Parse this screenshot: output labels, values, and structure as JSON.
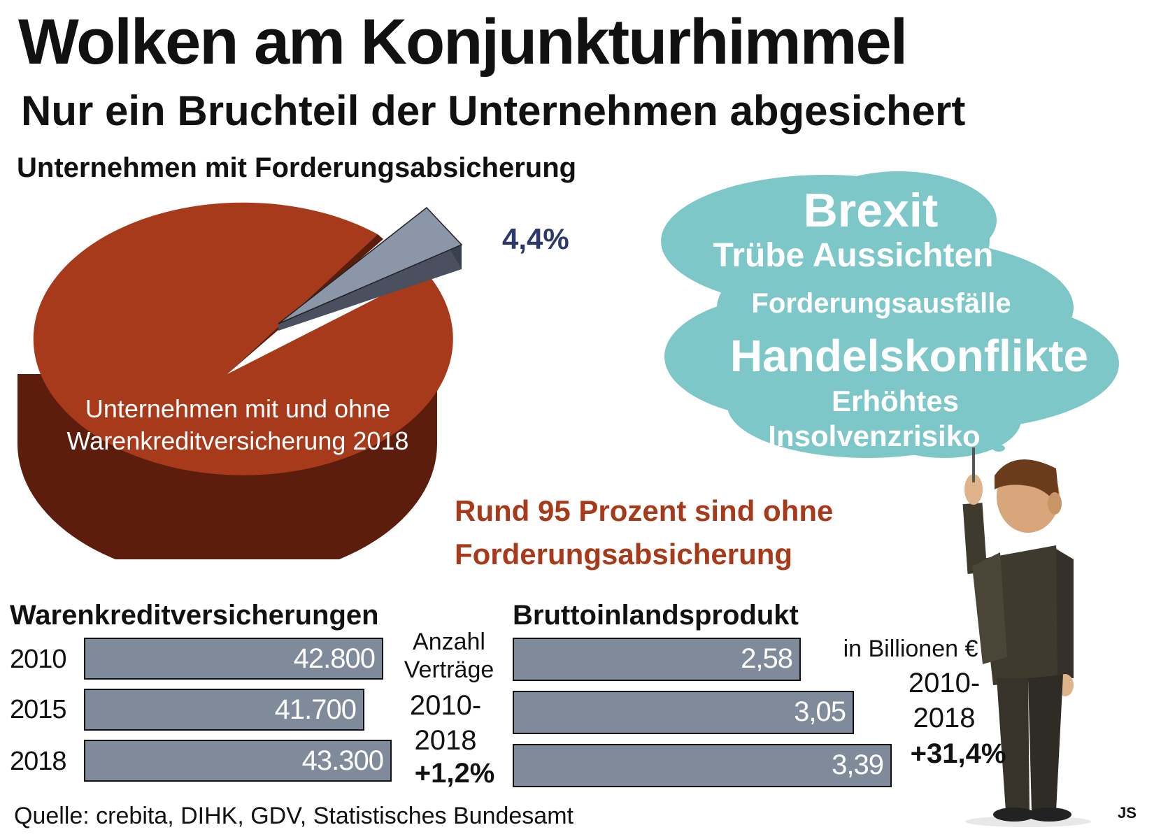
{
  "title": "Wolken am Konjunkturhimmel",
  "subtitle": "Nur ein Bruchteil der Unternehmen abgesichert",
  "pie_heading": "Unternehmen mit Forderungsabsicherung",
  "pie_share_label": "4,4%",
  "pie_inner_label_line1": "Unternehmen mit und ohne",
  "pie_inner_label_line2": "Warenkreditversicherung 2018",
  "highlight_line1": "Rund 95 Prozent sind ohne",
  "highlight_line2": "Forderungsabsicherung",
  "cloud_words": [
    "Brexit",
    "Trübe Aussichten",
    "Forderungsausfälle",
    "Handelskonflikte",
    "Erhöhtes",
    "Insolvenzrisiko"
  ],
  "left_section": {
    "title": "Warenkreditversicherungen",
    "note_line1": "Anzahl",
    "note_line2": "Verträge",
    "period_line1": "2010-",
    "period_line2": "2018",
    "change": "+1,2%"
  },
  "right_section": {
    "title": "Bruttoinlandsprodukt",
    "unit": "in Billionen €",
    "period_line1": "2010-",
    "period_line2": "2018",
    "change": "+31,4%"
  },
  "source": "Quelle: crebita, DIHK, GDV, Statistisches Bundesamt",
  "author": "JS",
  "colors": {
    "pie_main": "#a63a1b",
    "pie_slice": "#8b96a8",
    "cloud": "#7ec7c8",
    "bar": "#7f8a9b",
    "accent_text": "#a63a1b",
    "pct_text": "#2b3a6b"
  },
  "chart_data": [
    {
      "type": "pie",
      "title": "Unternehmen mit Forderungsabsicherung",
      "slices": [
        {
          "label": "4,4%",
          "value": 4.4
        },
        {
          "label": "",
          "value": 95.6
        }
      ]
    },
    {
      "type": "bar",
      "title": "Warenkreditversicherungen",
      "categories": [
        "2010",
        "2015",
        "2018"
      ],
      "values": [
        42800,
        41700,
        43300
      ],
      "value_labels": [
        "42.800",
        "41.700",
        "43.300"
      ]
    },
    {
      "type": "bar",
      "title": "Bruttoinlandsprodukt",
      "unit": "in Billionen €",
      "categories": [
        "2010",
        "2015",
        "2018"
      ],
      "values": [
        2.58,
        3.05,
        3.39
      ],
      "value_labels": [
        "2,58",
        "3,05",
        "3,39"
      ]
    }
  ]
}
